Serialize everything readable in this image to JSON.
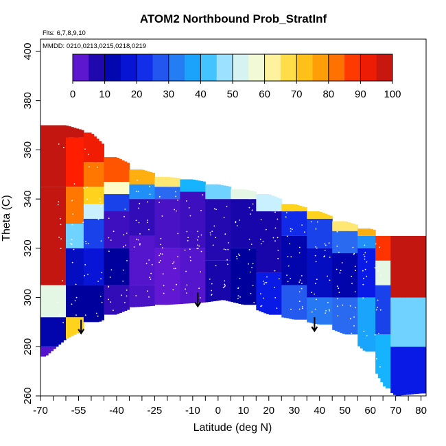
{
  "chart_data": {
    "type": "heatmap",
    "title": "ATOM2 Northbound Prob_StratInf",
    "annotations": [
      "Flts: 6,7,8,9,10",
      "MMDD: 0210,0213,0215,0218,0219"
    ],
    "xlabel": "Latitude (deg N)",
    "ylabel": "Theta (C)",
    "xlim": [
      -70,
      82
    ],
    "ylim": [
      260,
      405
    ],
    "x_ticks": [
      -70,
      -55,
      -40,
      -25,
      -10,
      0,
      10,
      20,
      30,
      40,
      50,
      60,
      70,
      80
    ],
    "x_tick_labels": [
      "-70",
      "-55",
      "-40",
      "-25",
      "-10",
      "0",
      "10",
      "20",
      "30",
      "40",
      "50",
      "60",
      "70",
      "80"
    ],
    "y_ticks": [
      260,
      280,
      300,
      320,
      340,
      360,
      380,
      400
    ],
    "y_tick_labels": [
      "260",
      "280",
      "300",
      "320",
      "340",
      "360",
      "380",
      "400"
    ],
    "colorbar": {
      "range": [
        0,
        100
      ],
      "ticks": [
        0,
        10,
        20,
        30,
        40,
        50,
        60,
        70,
        80,
        90,
        100
      ],
      "tick_labels": [
        "0",
        "10",
        "20",
        "30",
        "40",
        "50",
        "60",
        "70",
        "80",
        "90",
        "100"
      ],
      "colors": [
        "#7a1ee0",
        "#00009c",
        "#0a1ae6",
        "#2a6af0",
        "#16b4ff",
        "#c8f0ff",
        "#fffcc8",
        "#ffd21e",
        "#ff8c00",
        "#ff1e00",
        "#b41414"
      ]
    },
    "arrows_at_latitude": [
      -54,
      -8,
      38
    ],
    "domain_bottom": [
      [
        -68,
        276
      ],
      [
        -60,
        283
      ],
      [
        -45,
        291
      ],
      [
        -33,
        296
      ],
      [
        -20,
        297
      ],
      [
        -5,
        298
      ],
      [
        2,
        299
      ],
      [
        10,
        297
      ],
      [
        20,
        293
      ],
      [
        30,
        291
      ],
      [
        40,
        289
      ],
      [
        50,
        285
      ],
      [
        58,
        278
      ],
      [
        63,
        268
      ],
      [
        66,
        263
      ],
      [
        70,
        260
      ],
      [
        80,
        261
      ]
    ],
    "domain_top": [
      [
        -70,
        370
      ],
      [
        -60,
        370
      ],
      [
        -50,
        367
      ],
      [
        -40,
        357
      ],
      [
        -30,
        352
      ],
      [
        -20,
        349
      ],
      [
        -10,
        348
      ],
      [
        0,
        346
      ],
      [
        10,
        344
      ],
      [
        20,
        342
      ],
      [
        30,
        338
      ],
      [
        40,
        335
      ],
      [
        50,
        331
      ],
      [
        60,
        328
      ],
      [
        70,
        325
      ],
      [
        80,
        325
      ]
    ],
    "cells_raw": [
      "-70,-60,270,280,3",
      "-70,-60,280,292,12",
      "-70,-60,292,305,55",
      "-70,-60,305,345,98",
      "-70,-60,345,370,98",
      "-60,-53,283,292,70",
      "-60,-53,292,305,10",
      "-60,-53,305,320,15",
      "-60,-53,320,330,45",
      "-60,-53,330,345,82",
      "-60,-53,345,365,90",
      "-60,-53,365,370,98",
      "-53,-45,290,305,10",
      "-53,-45,305,320,18",
      "-53,-45,320,332,25",
      "-53,-45,332,338,50",
      "-53,-45,338,345,70",
      "-53,-45,345,355,82",
      "-53,-45,355,367,92",
      "-45,-35,293,305,6",
      "-45,-35,305,320,10",
      "-45,-35,320,335,5",
      "-45,-35,335,342,25",
      "-45,-35,342,347,60",
      "-45,-35,347,357,85",
      "-35,-25,296,305,4",
      "-35,-25,305,325,3",
      "-35,-25,325,340,6",
      "-35,-25,340,346,35",
      "-35,-25,346,352,75",
      "-25,-15,297,320,2",
      "-25,-15,320,340,4",
      "-25,-15,340,345,30",
      "-25,-15,345,349,65",
      "-15,-5,297,320,3",
      "-15,-5,320,343,5",
      "-15,-5,343,348,40",
      "-5,5,298,315,8",
      "-5,5,315,340,7",
      "-5,5,340,346,45",
      "5,15,297,320,10",
      "5,15,320,340,8",
      "5,15,340,344,55",
      "15,25,293,310,20",
      "15,25,310,335,8",
      "15,25,335,342,50",
      "25,35,291,305,28",
      "25,35,305,325,12",
      "25,35,325,335,22",
      "25,35,335,338,70",
      "35,45,289,300,32",
      "35,45,300,320,15",
      "35,45,320,332,25",
      "35,45,332,335,70",
      "45,55,285,300,30",
      "45,55,300,318,12",
      "45,55,318,327,30",
      "45,55,327,331,65",
      "55,62,278,300,38",
      "55,62,300,320,20",
      "55,62,320,325,35",
      "55,62,325,328,75",
      "62,68,263,285,40",
      "62,68,285,305,25",
      "62,68,305,315,55",
      "62,68,315,325,88",
      "68,82,260,280,20",
      "68,82,280,300,45",
      "68,82,300,325,98"
    ]
  }
}
